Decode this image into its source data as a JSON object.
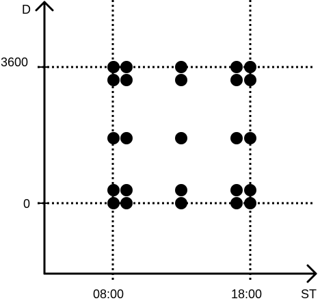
{
  "diagram": {
    "x_axis_label": "ST",
    "y_axis_label": "D",
    "x_ticks": [
      "08:00",
      "18:00"
    ],
    "y_ticks": [
      "3600",
      "0"
    ],
    "line_color": "#000000",
    "point_color": "#000000",
    "guide_lines": "dotted"
  }
}
